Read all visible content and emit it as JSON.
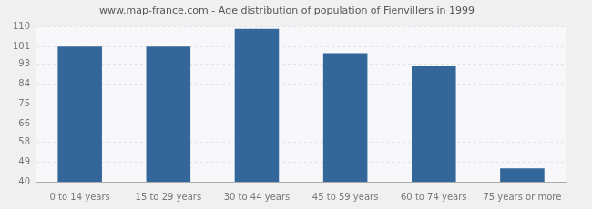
{
  "chart_data": {
    "type": "bar",
    "title": "www.map-france.com - Age distribution of population of Fienvillers in 1999",
    "categories": [
      "0 to 14 years",
      "15 to 29 years",
      "30 to 44 years",
      "45 to 59 years",
      "60 to 74 years",
      "75 years or more"
    ],
    "values": [
      101,
      101,
      109,
      98,
      92,
      46
    ],
    "color": "#336699",
    "ylim": [
      40,
      110
    ],
    "yticks": [
      40,
      49,
      58,
      66,
      75,
      84,
      93,
      101,
      110
    ],
    "grid": true
  }
}
